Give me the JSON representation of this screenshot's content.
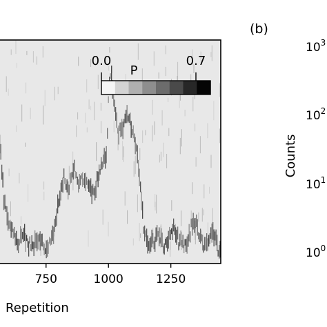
{
  "panel_b": {
    "label": "(b)"
  },
  "chart_data": [
    {
      "type": "heatmap",
      "title": "",
      "xlabel": "Repetition",
      "ylabel": "",
      "xlim": [
        560,
        1450
      ],
      "x_ticks": [
        750,
        1000,
        1250
      ],
      "x_tick_labels": [
        "750",
        "1000",
        "1250"
      ],
      "colorbar": {
        "label": "P",
        "min": 0.0,
        "max": 0.7,
        "min_label": "0.0",
        "max_label": "0.7",
        "steps": 8,
        "colormap": "greys"
      },
      "background_color": "#e8e8e8",
      "trace_color": "#333333",
      "trace": {
        "x": [
          560,
          580,
          600,
          620,
          640,
          660,
          680,
          700,
          720,
          740,
          760,
          780,
          800,
          820,
          840,
          860,
          880,
          900,
          920,
          940,
          960,
          980,
          990,
          1000,
          1010,
          1020,
          1040,
          1060,
          1080,
          1100,
          1110,
          1120,
          1130,
          1140,
          1160,
          1180,
          1200,
          1220,
          1240,
          1260,
          1280,
          1300,
          1320,
          1340,
          1360,
          1380,
          1400,
          1420,
          1440
        ],
        "y": [
          0.58,
          0.28,
          0.18,
          0.12,
          0.1,
          0.12,
          0.08,
          0.09,
          0.1,
          0.07,
          0.08,
          0.14,
          0.3,
          0.38,
          0.34,
          0.42,
          0.36,
          0.39,
          0.33,
          0.31,
          0.4,
          0.45,
          0.5,
          0.76,
          0.86,
          0.72,
          0.58,
          0.62,
          0.66,
          0.58,
          0.5,
          0.42,
          0.3,
          0.14,
          0.09,
          0.1,
          0.12,
          0.08,
          0.1,
          0.18,
          0.1,
          0.08,
          0.12,
          0.2,
          0.14,
          0.08,
          0.1,
          0.14,
          0.06
        ]
      }
    },
    {
      "type": "bar",
      "title": "",
      "xlabel": "",
      "ylabel": "Counts",
      "yscale": "log",
      "y_tick_labels": [
        "10^0",
        "10^1",
        "10^2",
        "10^3"
      ]
    }
  ]
}
